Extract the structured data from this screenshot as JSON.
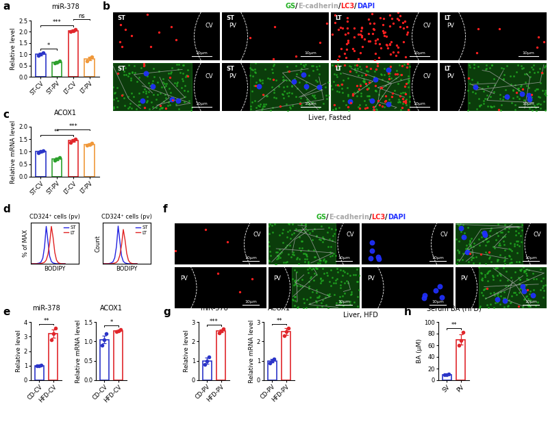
{
  "chart_data": [
    {
      "type": "bar",
      "panel_label": "a",
      "title": "miR-378",
      "y_label": "Relative level",
      "categories": [
        "ST-CV",
        "ST-PV",
        "LT-CV",
        "LT-PV"
      ],
      "values": [
        1.0,
        0.65,
        2.05,
        0.8
      ],
      "errors": [
        0.07,
        0.04,
        0.04,
        0.07
      ],
      "points": [
        [
          0.93,
          1.0,
          1.07
        ],
        [
          0.6,
          0.65,
          0.7
        ],
        [
          2.01,
          2.05,
          2.1
        ],
        [
          0.7,
          0.82,
          0.88
        ]
      ],
      "colors": [
        "#2b35c8",
        "#2ca02c",
        "#e0262b",
        "#f0983a"
      ],
      "ylim": [
        0,
        2.5
      ],
      "yticks": [
        {
          "value": 0,
          "label": "0.0"
        },
        {
          "value": 0.5,
          "label": "0.5"
        },
        {
          "value": 1.0,
          "label": "1.0"
        },
        {
          "value": 1.5,
          "label": "1.5"
        },
        {
          "value": 2.0,
          "label": "2.0"
        },
        {
          "value": 2.5,
          "label": "2.5"
        }
      ],
      "annotations": [
        {
          "from": "ST-CV",
          "to": "ST-PV",
          "text": "*"
        },
        {
          "from": "ST-CV",
          "to": "LT-CV",
          "text": "***"
        },
        {
          "from": "LT-CV",
          "to": "LT-PV",
          "text": "ns"
        }
      ]
    },
    {
      "type": "bar",
      "panel_label": "c",
      "title": "ACOX1",
      "y_label": "Relative mRNA level",
      "categories": [
        "ST-CV",
        "ST-PV",
        "LT-CV",
        "LT-PV"
      ],
      "values": [
        1.0,
        0.72,
        1.45,
        1.3
      ],
      "errors": [
        0.04,
        0.05,
        0.06,
        0.03
      ],
      "points": [
        [
          0.95,
          1.0,
          1.05
        ],
        [
          0.65,
          0.72,
          0.78
        ],
        [
          1.38,
          1.45,
          1.52
        ],
        [
          1.27,
          1.3,
          1.33
        ]
      ],
      "colors": [
        "#2b35c8",
        "#2ca02c",
        "#e0262b",
        "#f0983a"
      ],
      "ylim": [
        0,
        2.0
      ],
      "yticks": [
        {
          "value": 0,
          "label": "0.0"
        },
        {
          "value": 0.5,
          "label": "0.5"
        },
        {
          "value": 1.0,
          "label": "1.0"
        },
        {
          "value": 1.5,
          "label": "1.5"
        },
        {
          "value": 2.0,
          "label": "2.0"
        }
      ],
      "annotations": [
        {
          "from": "ST-CV",
          "to": "LT-CV",
          "text": "**"
        },
        {
          "from": "ST-PV",
          "to": "LT-PV",
          "text": "***"
        }
      ]
    },
    {
      "type": "line",
      "panel_label": "d",
      "title": "CD324⁺ cells (pv)",
      "x_label": "BODIPY",
      "y_label": "% of MAX",
      "x": [
        0,
        0.5,
        1,
        1.5,
        2,
        2.5,
        3,
        3.5,
        4,
        4.5,
        5,
        5.5,
        6,
        6.5,
        7,
        7.5,
        8,
        8.5,
        9,
        9.5,
        10
      ],
      "series": [
        {
          "name": "ST",
          "color": "#2020e0",
          "values": [
            0,
            0,
            0,
            0,
            1,
            2,
            5,
            15,
            45,
            100,
            60,
            20,
            6,
            2,
            1,
            0,
            0,
            0,
            0,
            0,
            0
          ]
        },
        {
          "name": "LT",
          "color": "#e02020",
          "values": [
            0,
            0,
            0,
            0,
            0,
            0,
            1,
            2,
            4,
            10,
            25,
            55,
            100,
            70,
            30,
            10,
            3,
            1,
            0,
            0,
            0
          ]
        }
      ],
      "xlim": [
        0,
        14
      ],
      "ylim": [
        0,
        110
      ],
      "tick_labels": false,
      "legend": "upper right"
    },
    {
      "type": "line",
      "title": "CD324⁺ cells (pv)",
      "x_label": "BODIPY",
      "y_label": "Count",
      "x": [
        0,
        0.5,
        1,
        1.5,
        2,
        2.5,
        3,
        3.5,
        4,
        4.5,
        5,
        5.5,
        6,
        6.5,
        7,
        7.5,
        8,
        8.5,
        9,
        9.5,
        10
      ],
      "series": [
        {
          "name": "ST",
          "color": "#2020e0",
          "values": [
            0,
            0,
            0,
            0,
            2,
            5,
            12,
            35,
            100,
            220,
            130,
            45,
            14,
            5,
            2,
            0,
            0,
            0,
            0,
            0,
            0
          ]
        },
        {
          "name": "LT",
          "color": "#e02020",
          "values": [
            0,
            0,
            0,
            0,
            0,
            0,
            2,
            4,
            8,
            20,
            50,
            110,
            200,
            140,
            60,
            20,
            6,
            2,
            0,
            0,
            0
          ]
        }
      ],
      "xlim": [
        0,
        14
      ],
      "ylim": [
        0,
        240
      ],
      "tick_labels": false,
      "legend": "upper right"
    },
    {
      "type": "bar",
      "panel_label": "e",
      "title": "miR-378",
      "y_label": "Relative level",
      "categories": [
        "CD-CV",
        "HFD-CV"
      ],
      "values": [
        1.0,
        3.2
      ],
      "errors": [
        0.03,
        0.3
      ],
      "points": [
        [
          0.97,
          1.0,
          1.03
        ],
        [
          2.8,
          3.2,
          3.6
        ]
      ],
      "colors": [
        "#2b35c8",
        "#e0262b"
      ],
      "ylim": [
        0,
        4
      ],
      "yticks": [
        0,
        1,
        2,
        3,
        4
      ],
      "annotations": [
        {
          "from": "CD-CV",
          "to": "HFD-CV",
          "text": "**"
        }
      ]
    },
    {
      "type": "bar",
      "title": "ACOX1",
      "y_label": "Relative mRNA level",
      "categories": [
        "CD-CV",
        "HFD-CV"
      ],
      "values": [
        1.05,
        1.27
      ],
      "errors": [
        0.1,
        0.02
      ],
      "points": [
        [
          0.9,
          1.05,
          1.2
        ],
        [
          1.25,
          1.27,
          1.3
        ]
      ],
      "colors": [
        "#2b35c8",
        "#e0262b"
      ],
      "ylim": [
        0,
        1.5
      ],
      "yticks": [
        {
          "value": 0,
          "label": "0.0"
        },
        {
          "value": 0.5,
          "label": "0.5"
        },
        {
          "value": 1.0,
          "label": "1.0"
        },
        {
          "value": 1.5,
          "label": "1.5"
        }
      ],
      "annotations": [
        {
          "from": "CD-CV",
          "to": "HFD-CV",
          "text": "*"
        }
      ]
    },
    {
      "type": "bar",
      "panel_label": "g",
      "title": "miR-378",
      "y_label": "Relative level",
      "categories": [
        "CD-PV",
        "HFD-PV"
      ],
      "values": [
        1.0,
        2.55
      ],
      "errors": [
        0.17,
        0.07
      ],
      "points": [
        [
          0.8,
          1.0,
          1.2
        ],
        [
          2.45,
          2.55,
          2.65
        ]
      ],
      "colors": [
        "#2b35c8",
        "#e0262b"
      ],
      "ylim": [
        0,
        3
      ],
      "yticks": [
        0,
        1,
        2,
        3
      ],
      "annotations": [
        {
          "from": "CD-PV",
          "to": "HFD-PV",
          "text": "***"
        }
      ]
    },
    {
      "type": "bar",
      "title": "ACOX1",
      "y_label": "Relative mRNA level",
      "categories": [
        "CD-PV",
        "HFD-PV"
      ],
      "values": [
        1.0,
        2.5
      ],
      "errors": [
        0.08,
        0.17
      ],
      "points": [
        [
          0.9,
          1.0,
          1.1
        ],
        [
          2.3,
          2.5,
          2.7
        ]
      ],
      "colors": [
        "#2b35c8",
        "#e0262b"
      ],
      "ylim": [
        0,
        3
      ],
      "yticks": [
        0,
        1,
        2,
        3
      ],
      "annotations": [
        {
          "from": "CD-PV",
          "to": "HFD-PV",
          "text": "**"
        }
      ]
    },
    {
      "type": "bar",
      "panel_label": "h",
      "title": "Serum BA (HFD)",
      "y_label": "BA (μM)",
      "categories": [
        "SV",
        "PV"
      ],
      "values": [
        10,
        70
      ],
      "errors": [
        1,
        9
      ],
      "points": [
        [
          9,
          10,
          11
        ],
        [
          60,
          68,
          82
        ]
      ],
      "colors": [
        "#2b35c8",
        "#e0262b"
      ],
      "ylim": [
        0,
        100
      ],
      "yticks": [
        0,
        20,
        40,
        60,
        80,
        100
      ],
      "annotations": [
        {
          "from": "SV",
          "to": "PV",
          "text": "**"
        }
      ]
    }
  ],
  "images": [
    {
      "panel_label": "b",
      "separator": "/",
      "stains": [
        {
          "name": "GS",
          "color": "#22b022"
        },
        {
          "name": "E-cadherin",
          "color": "#a8a8a8"
        },
        {
          "name": "LC3",
          "color": "#ff2020"
        },
        {
          "name": "DAPI",
          "color": "#2030ff"
        }
      ],
      "caption": "Liver, Fasted",
      "scale_bar": "10μm",
      "rows": [
        [
          {
            "group": "ST",
            "zone": "CV",
            "channels": [
              "LC3"
            ]
          },
          {
            "group": "ST",
            "zone": "PV",
            "channels": [
              "LC3"
            ]
          },
          {
            "group": "LT",
            "zone": "CV",
            "channels": [
              "LC3"
            ]
          },
          {
            "group": "LT",
            "zone": "PV",
            "channels": [
              "LC3"
            ]
          }
        ],
        [
          {
            "group": "ST",
            "zone": "CV",
            "channels": [
              "GS",
              "E-cadherin",
              "LC3",
              "DAPI"
            ]
          },
          {
            "group": "ST",
            "zone": "PV",
            "channels": [
              "GS",
              "E-cadherin",
              "LC3",
              "DAPI"
            ]
          },
          {
            "group": "LT",
            "zone": "CV",
            "channels": [
              "GS",
              "E-cadherin",
              "LC3",
              "DAPI"
            ]
          },
          {
            "group": "LT",
            "zone": "PV",
            "channels": [
              "GS",
              "E-cadherin",
              "LC3",
              "DAPI"
            ]
          }
        ]
      ]
    },
    {
      "panel_label": "f",
      "separator": "/",
      "stains": [
        {
          "name": "GS",
          "color": "#22b022"
        },
        {
          "name": "E-cadherin",
          "color": "#a8a8a8"
        },
        {
          "name": "LC3",
          "color": "#ff2020"
        },
        {
          "name": "DAPI",
          "color": "#2030ff"
        }
      ],
      "caption": "Liver, HFD",
      "scale_bar": "10μm",
      "rows": [
        [
          {
            "zone": "CV",
            "channels": [
              "LC3"
            ]
          },
          {
            "zone": "CV",
            "channels": [
              "GS",
              "E-cadherin"
            ]
          },
          {
            "zone": "CV",
            "channels": [
              "DAPI"
            ]
          },
          {
            "zone": "CV",
            "channels": [
              "GS",
              "E-cadherin",
              "LC3",
              "DAPI"
            ]
          }
        ],
        [
          {
            "zone": "PV",
            "channels": [
              "LC3"
            ]
          },
          {
            "zone": "PV",
            "channels": [
              "GS",
              "E-cadherin"
            ]
          },
          {
            "zone": "PV",
            "channels": [
              "DAPI"
            ]
          },
          {
            "zone": "PV",
            "channels": [
              "GS",
              "E-cadherin",
              "LC3",
              "DAPI"
            ]
          }
        ]
      ]
    }
  ]
}
